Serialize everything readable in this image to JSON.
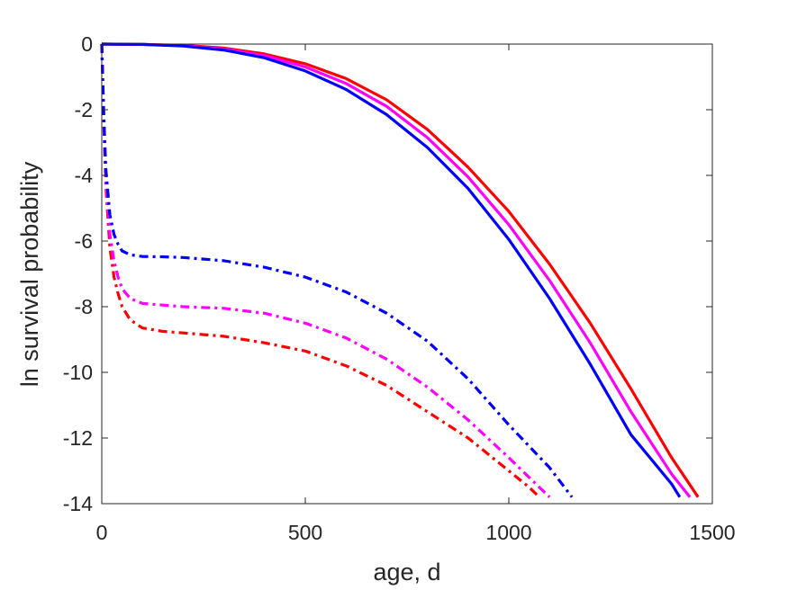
{
  "chart_data": {
    "type": "line",
    "title": "",
    "xlabel": "age, d",
    "ylabel": "ln survival probability",
    "xlim": [
      0,
      1500
    ],
    "ylim": [
      -14,
      0
    ],
    "xticks": [
      0,
      500,
      1000,
      1500
    ],
    "yticks": [
      0,
      -2,
      -4,
      -6,
      -8,
      -10,
      -12,
      -14
    ],
    "grid": false,
    "legend": null,
    "series": [
      {
        "color": "#ff0000",
        "style": "solid",
        "x": [
          0,
          100,
          200,
          300,
          400,
          500,
          600,
          700,
          800,
          900,
          1000,
          1100,
          1200,
          1300,
          1400,
          1465
        ],
        "y": [
          0,
          -0.01,
          -0.04,
          -0.12,
          -0.3,
          -0.6,
          -1.05,
          -1.7,
          -2.6,
          -3.75,
          -5.1,
          -6.7,
          -8.5,
          -10.5,
          -12.6,
          -13.8
        ]
      },
      {
        "color": "#ff00ff",
        "style": "solid",
        "x": [
          0,
          100,
          200,
          300,
          400,
          500,
          600,
          700,
          800,
          900,
          1000,
          1100,
          1200,
          1300,
          1400,
          1445
        ],
        "y": [
          0,
          -0.01,
          -0.05,
          -0.15,
          -0.35,
          -0.7,
          -1.2,
          -1.9,
          -2.85,
          -4.05,
          -5.5,
          -7.2,
          -9.1,
          -11.2,
          -13.1,
          -13.8
        ]
      },
      {
        "color": "#0000ff",
        "style": "solid",
        "x": [
          0,
          100,
          200,
          300,
          400,
          500,
          600,
          700,
          800,
          900,
          1000,
          1100,
          1200,
          1300,
          1400,
          1420
        ],
        "y": [
          0,
          -0.01,
          -0.06,
          -0.18,
          -0.42,
          -0.82,
          -1.38,
          -2.15,
          -3.15,
          -4.4,
          -5.95,
          -7.75,
          -9.75,
          -11.9,
          -13.4,
          -13.8
        ]
      },
      {
        "color": "#ff0000",
        "style": "dashdot",
        "x": [
          0,
          5,
          10,
          20,
          30,
          40,
          50,
          70,
          100,
          150,
          200,
          300,
          400,
          500,
          600,
          700,
          800,
          900,
          1000,
          1050,
          1075
        ],
        "y": [
          0,
          -2.5,
          -4.3,
          -6.2,
          -7.1,
          -7.6,
          -8.0,
          -8.4,
          -8.65,
          -8.75,
          -8.8,
          -8.9,
          -9.1,
          -9.35,
          -9.8,
          -10.4,
          -11.2,
          -12.0,
          -13.0,
          -13.5,
          -13.8
        ]
      },
      {
        "color": "#ff00ff",
        "style": "dashdot",
        "x": [
          0,
          5,
          10,
          20,
          30,
          40,
          50,
          70,
          100,
          150,
          200,
          300,
          400,
          500,
          600,
          700,
          800,
          900,
          1000,
          1050,
          1100
        ],
        "y": [
          0,
          -2.4,
          -4.1,
          -5.8,
          -6.6,
          -7.1,
          -7.45,
          -7.75,
          -7.9,
          -7.95,
          -8.0,
          -8.05,
          -8.2,
          -8.5,
          -8.95,
          -9.6,
          -10.45,
          -11.45,
          -12.6,
          -13.2,
          -13.8
        ]
      },
      {
        "color": "#0000ff",
        "style": "dashdot",
        "x": [
          0,
          5,
          10,
          20,
          30,
          40,
          50,
          70,
          100,
          150,
          200,
          300,
          400,
          500,
          600,
          700,
          800,
          900,
          1000,
          1100,
          1155
        ],
        "y": [
          0,
          -2.2,
          -3.8,
          -5.2,
          -5.8,
          -6.1,
          -6.3,
          -6.42,
          -6.47,
          -6.48,
          -6.5,
          -6.6,
          -6.8,
          -7.1,
          -7.55,
          -8.2,
          -9.05,
          -10.2,
          -11.6,
          -12.9,
          -13.8
        ]
      }
    ]
  }
}
